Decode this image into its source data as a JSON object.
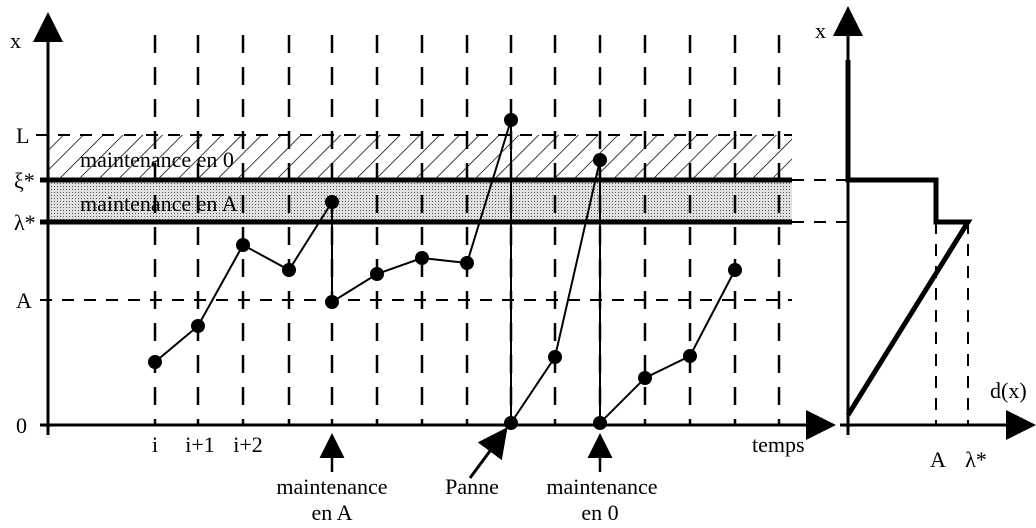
{
  "left_plot": {
    "y_axis_label": "x",
    "level_labels": [
      "L",
      "ξ*",
      "λ*",
      "A",
      "0"
    ],
    "band_labels": [
      "maintenance en 0",
      "maintenance en A"
    ],
    "x_tick_labels": [
      "i",
      "i+1",
      "i+2"
    ],
    "x_axis_label": "temps",
    "annotations": [
      {
        "lines": [
          "maintenance",
          "en A"
        ]
      },
      {
        "lines": [
          "Panne"
        ]
      },
      {
        "lines": [
          "maintenance",
          "en 0"
        ]
      }
    ]
  },
  "right_plot": {
    "y_axis_label": "x",
    "x_axis_label": "d(x)",
    "x_tick_labels": [
      "A",
      "λ*"
    ]
  }
}
